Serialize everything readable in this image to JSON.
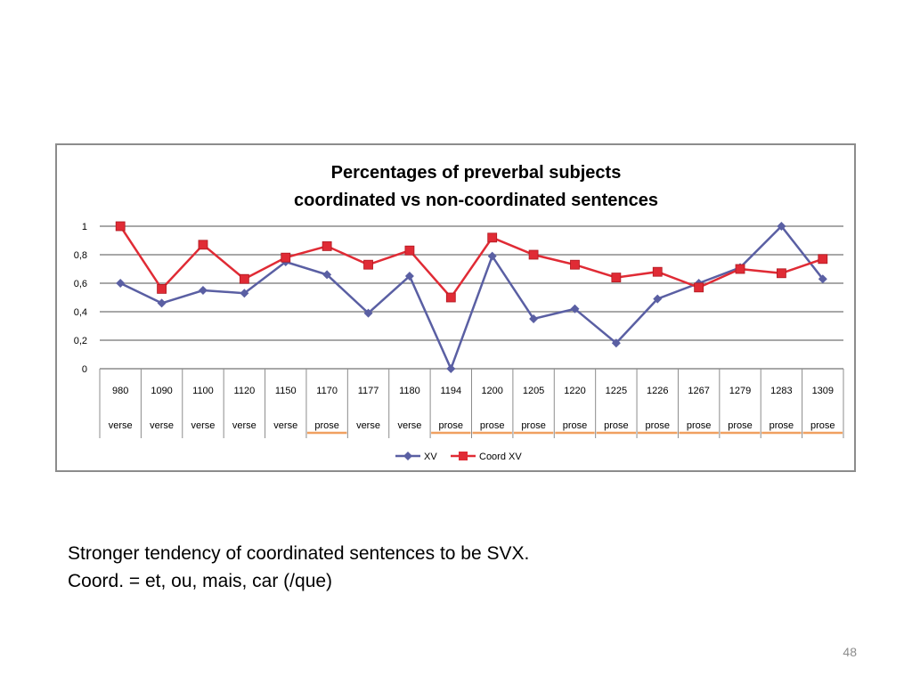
{
  "chart_data": {
    "type": "line",
    "title": [
      "Percentages of preverbal subjects",
      "coordinated vs non-coordinated sentences"
    ],
    "categories": [
      "980",
      "1090",
      "1100",
      "1120",
      "1150",
      "1170",
      "1177",
      "1180",
      "1194",
      "1200",
      "1205",
      "1220",
      "1225",
      "1226",
      "1267",
      "1279",
      "1283",
      "1309"
    ],
    "category_types": [
      "verse",
      "verse",
      "verse",
      "verse",
      "verse",
      "prose",
      "verse",
      "verse",
      "prose",
      "prose",
      "prose",
      "prose",
      "prose",
      "prose",
      "prose",
      "prose",
      "prose",
      "prose"
    ],
    "series": [
      {
        "name": "XV",
        "color": "#5a5fa3",
        "marker": "diamond",
        "values": [
          0.6,
          0.46,
          0.55,
          0.53,
          0.75,
          0.66,
          0.39,
          0.65,
          0.0,
          0.79,
          0.35,
          0.42,
          0.18,
          0.49,
          0.6,
          0.71,
          1.0,
          0.63
        ]
      },
      {
        "name": "Coord XV",
        "color": "#e02b35",
        "marker": "square",
        "values": [
          1.0,
          0.56,
          0.87,
          0.63,
          0.78,
          0.86,
          0.73,
          0.83,
          0.5,
          0.92,
          0.8,
          0.73,
          0.64,
          0.68,
          0.57,
          0.7,
          0.67,
          0.77
        ]
      }
    ],
    "yticks": [
      "0",
      "0,2",
      "0,4",
      "0,6",
      "0,8",
      "1"
    ],
    "ylim": [
      0,
      1
    ],
    "grid": true,
    "legend_position": "bottom",
    "prose_underline_color": "#f0a060"
  },
  "caption": {
    "line1": "Stronger tendency of coordinated sentences to be SVX.",
    "line2": "Coord. = et, ou, mais, car (/que)"
  },
  "slide_number": "48"
}
